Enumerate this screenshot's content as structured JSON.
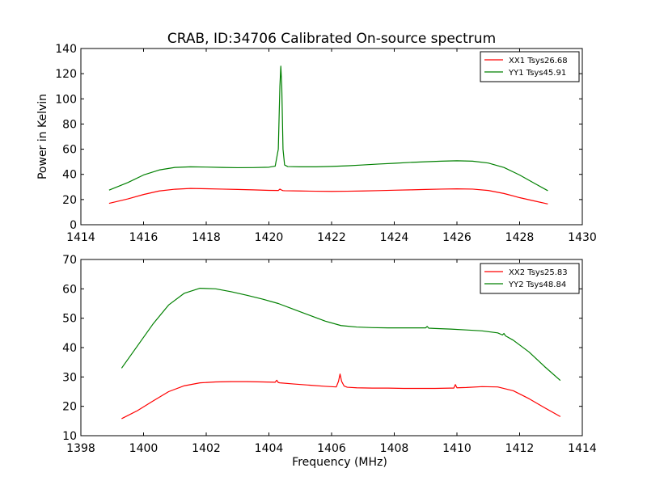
{
  "figure": {
    "title": "CRAB, ID:34706 Calibrated On-source spectrum"
  },
  "chart_data": [
    {
      "type": "line",
      "title": "CRAB, ID:34706 Calibrated On-source spectrum",
      "xlabel": "",
      "ylabel": "Power in Kelvin",
      "xlim": [
        1414,
        1430
      ],
      "ylim": [
        0,
        140
      ],
      "xticks": [
        1414,
        1416,
        1418,
        1420,
        1422,
        1424,
        1426,
        1428,
        1430
      ],
      "yticks": [
        0,
        20,
        40,
        60,
        80,
        100,
        120,
        140
      ],
      "grid": false,
      "legend_position": "top-right",
      "series": [
        {
          "name": "XX1 Tsys26.68",
          "color": "#ff0000",
          "x": [
            1414.9,
            1415.5,
            1416.0,
            1416.5,
            1417.0,
            1417.5,
            1418.0,
            1418.5,
            1419.0,
            1419.5,
            1420.0,
            1420.3,
            1420.35,
            1420.4,
            1420.45,
            1420.5,
            1421.0,
            1421.5,
            1422.0,
            1422.5,
            1423.0,
            1423.5,
            1424.0,
            1424.5,
            1425.0,
            1425.5,
            1426.0,
            1426.5,
            1427.0,
            1427.5,
            1428.0,
            1428.5,
            1428.9
          ],
          "y": [
            17.0,
            20.5,
            24.0,
            26.8,
            28.2,
            28.8,
            28.6,
            28.3,
            28.0,
            27.7,
            27.3,
            27.2,
            28.3,
            27.6,
            27.1,
            27.0,
            26.8,
            26.6,
            26.5,
            26.6,
            26.8,
            27.1,
            27.4,
            27.7,
            28.0,
            28.3,
            28.5,
            28.3,
            27.2,
            24.8,
            21.5,
            18.7,
            16.5
          ]
        },
        {
          "name": "YY1 Tsys45.91",
          "color": "#008000",
          "x": [
            1414.9,
            1415.5,
            1416.0,
            1416.5,
            1417.0,
            1417.5,
            1418.0,
            1418.5,
            1419.0,
            1419.5,
            1420.0,
            1420.2,
            1420.3,
            1420.35,
            1420.38,
            1420.41,
            1420.45,
            1420.5,
            1420.6,
            1421.0,
            1421.5,
            1422.0,
            1422.5,
            1423.0,
            1423.5,
            1424.0,
            1424.5,
            1425.0,
            1425.5,
            1426.0,
            1426.5,
            1427.0,
            1427.5,
            1428.0,
            1428.5,
            1428.9
          ],
          "y": [
            27.5,
            33.5,
            39.5,
            43.5,
            45.5,
            46.0,
            45.8,
            45.5,
            45.3,
            45.4,
            45.7,
            46.5,
            60.0,
            110.0,
            126.0,
            110.0,
            60.0,
            47.5,
            46.2,
            46.0,
            46.0,
            46.3,
            46.8,
            47.5,
            48.2,
            48.8,
            49.5,
            50.0,
            50.5,
            50.8,
            50.5,
            49.0,
            45.5,
            39.5,
            32.5,
            27.0
          ]
        }
      ]
    },
    {
      "type": "line",
      "title": "",
      "xlabel": "Frequency (MHz)",
      "ylabel": "",
      "xlim": [
        1398,
        1414
      ],
      "ylim": [
        10,
        70
      ],
      "xticks": [
        1398,
        1400,
        1402,
        1404,
        1406,
        1408,
        1410,
        1412,
        1414
      ],
      "yticks": [
        10,
        20,
        30,
        40,
        50,
        60,
        70
      ],
      "grid": false,
      "legend_position": "top-right",
      "series": [
        {
          "name": "XX2 Tsys25.83",
          "color": "#ff0000",
          "x": [
            1399.3,
            1399.8,
            1400.3,
            1400.8,
            1401.3,
            1401.8,
            1402.3,
            1402.8,
            1403.3,
            1403.8,
            1404.2,
            1404.25,
            1404.3,
            1404.35,
            1404.8,
            1405.3,
            1405.8,
            1406.15,
            1406.22,
            1406.27,
            1406.32,
            1406.4,
            1406.5,
            1406.8,
            1407.3,
            1407.8,
            1408.3,
            1408.8,
            1409.3,
            1409.8,
            1409.9,
            1409.95,
            1410.0,
            1410.3,
            1410.8,
            1411.3,
            1411.8,
            1412.3,
            1412.8,
            1413.3
          ],
          "y": [
            15.8,
            18.5,
            21.8,
            25.0,
            27.0,
            28.0,
            28.3,
            28.4,
            28.4,
            28.3,
            28.2,
            28.9,
            28.1,
            28.0,
            27.6,
            27.2,
            26.8,
            26.6,
            28.5,
            31.0,
            28.5,
            26.9,
            26.5,
            26.3,
            26.2,
            26.2,
            26.1,
            26.1,
            26.1,
            26.2,
            26.2,
            27.4,
            26.3,
            26.4,
            26.7,
            26.6,
            25.3,
            22.6,
            19.5,
            16.5
          ]
        },
        {
          "name": "YY2 Tsys48.84",
          "color": "#008000",
          "x": [
            1399.3,
            1399.8,
            1400.3,
            1400.8,
            1401.3,
            1401.8,
            1402.3,
            1402.8,
            1403.3,
            1403.8,
            1404.3,
            1404.8,
            1405.3,
            1405.8,
            1406.3,
            1406.8,
            1407.3,
            1407.8,
            1408.3,
            1408.8,
            1409.0,
            1409.05,
            1409.1,
            1409.3,
            1409.8,
            1410.3,
            1410.8,
            1411.3,
            1411.45,
            1411.5,
            1411.55,
            1411.8,
            1412.3,
            1412.8,
            1413.3
          ],
          "y": [
            33.0,
            40.5,
            48.0,
            54.5,
            58.5,
            60.2,
            60.0,
            59.0,
            57.8,
            56.5,
            55.0,
            53.0,
            51.0,
            49.0,
            47.5,
            47.0,
            46.8,
            46.7,
            46.7,
            46.7,
            46.7,
            47.2,
            46.6,
            46.5,
            46.3,
            46.0,
            45.7,
            45.0,
            44.3,
            44.8,
            44.0,
            42.5,
            38.5,
            33.5,
            28.8
          ]
        }
      ]
    }
  ]
}
